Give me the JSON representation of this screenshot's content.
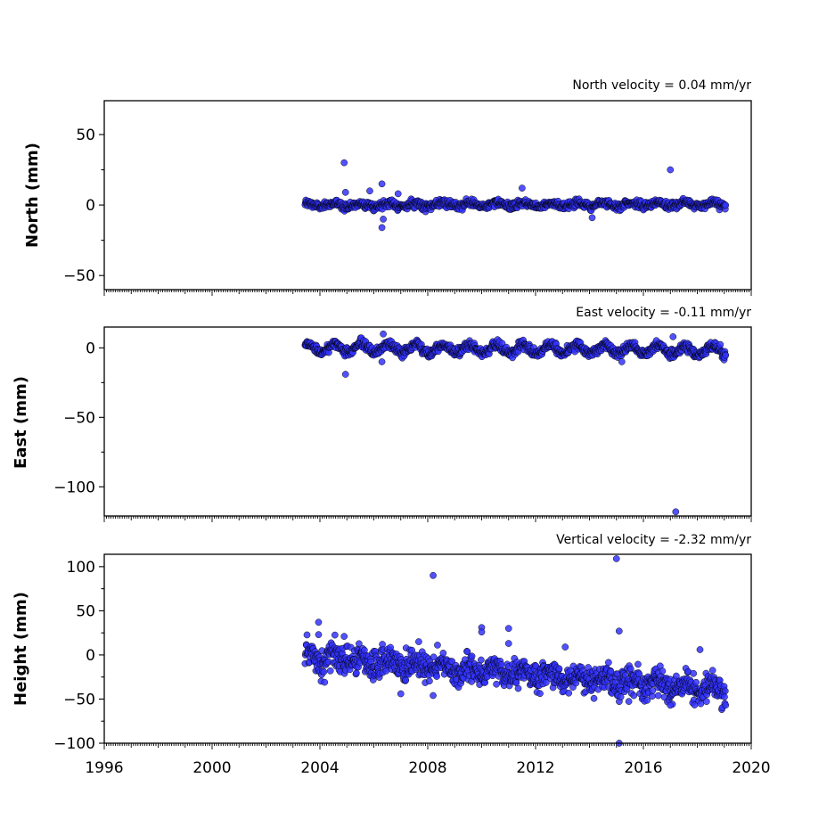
{
  "chart_data": [
    {
      "type": "scatter",
      "panel": "north",
      "title": "North velocity = 0.04 mm/yr",
      "ylabel": "North (mm)",
      "xlim": [
        1996,
        2020
      ],
      "ylim": [
        -60,
        74
      ],
      "yticks": [
        -50,
        0,
        50
      ],
      "color": "#3333ff",
      "edge_color": "#000000",
      "series": [
        {
          "start": 2003.45,
          "end": 2019.05,
          "trend": 0.04,
          "offset": 0,
          "amplitude": 1.2,
          "noise": 1.3,
          "points": [
            [
              2004.9,
              30
            ],
            [
              2004.95,
              9
            ],
            [
              2005.85,
              10
            ],
            [
              2006.3,
              15
            ],
            [
              2006.35,
              -10
            ],
            [
              2006.3,
              -16
            ],
            [
              2006.9,
              8
            ],
            [
              2011.5,
              12
            ],
            [
              2014.1,
              -9
            ],
            [
              2017.0,
              25
            ]
          ]
        }
      ]
    },
    {
      "type": "scatter",
      "panel": "east",
      "title": "East velocity = -0.11 mm/yr",
      "ylabel": "East (mm)",
      "xlim": [
        1996,
        2020
      ],
      "ylim": [
        -121,
        15
      ],
      "yticks": [
        -100,
        -50,
        0
      ],
      "color": "#3333ff",
      "edge_color": "#000000",
      "series": [
        {
          "start": 2003.45,
          "end": 2019.05,
          "trend": -0.11,
          "offset": 0,
          "amplitude": 3.2,
          "noise": 1.6,
          "points": [
            [
              2004.95,
              -19
            ],
            [
              2006.3,
              -10
            ],
            [
              2006.35,
              10
            ],
            [
              2015.2,
              -10
            ],
            [
              2017.1,
              8
            ],
            [
              2017.2,
              -118
            ]
          ]
        }
      ]
    },
    {
      "type": "scatter",
      "panel": "height",
      "title": "Vertical velocity = -2.32 mm/yr",
      "ylabel": "Height (mm)",
      "xlim": [
        1996,
        2020
      ],
      "ylim": [
        -100,
        114
      ],
      "yticks": [
        -100,
        -50,
        0,
        50,
        100
      ],
      "xticks": [
        1996,
        2000,
        2004,
        2008,
        2012,
        2016,
        2020
      ],
      "color": "#3333ff",
      "edge_color": "#000000",
      "series": [
        {
          "start": 2003.45,
          "end": 2019.05,
          "trend": -2.32,
          "offset": -3,
          "amplitude": 5,
          "noise": 8,
          "points": [
            [
              2003.95,
              37
            ],
            [
              2003.95,
              23
            ],
            [
              2004.9,
              21
            ],
            [
              2008.2,
              90
            ],
            [
              2008.2,
              -46
            ],
            [
              2007.0,
              -44
            ],
            [
              2010.0,
              31
            ],
            [
              2010.0,
              26
            ],
            [
              2011.0,
              30
            ],
            [
              2011.0,
              13
            ],
            [
              2013.1,
              9
            ],
            [
              2015.0,
              109
            ],
            [
              2015.1,
              27
            ],
            [
              2015.1,
              -100
            ],
            [
              2018.1,
              6
            ],
            [
              2017.0,
              -57
            ]
          ]
        }
      ]
    }
  ]
}
